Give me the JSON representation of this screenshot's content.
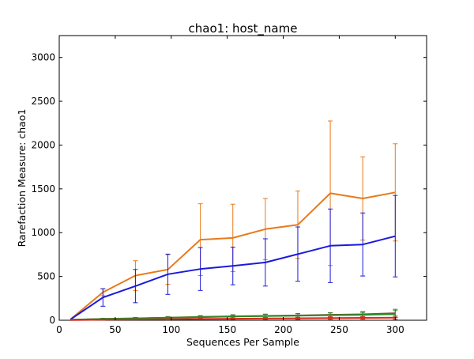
{
  "chart_data": {
    "type": "line",
    "title": "chao1: host_name",
    "xlabel": "Sequences Per Sample",
    "ylabel": "Rarefaction Measure: chao1",
    "xlim": [
      0,
      328
    ],
    "ylim": [
      0,
      3250
    ],
    "x_ticks": [
      0,
      50,
      100,
      150,
      200,
      250,
      300
    ],
    "y_ticks": [
      0,
      500,
      1000,
      1500,
      2000,
      2500,
      3000
    ],
    "grid": false,
    "legend": "none",
    "x": [
      10,
      39,
      68,
      97,
      126,
      155,
      184,
      213,
      242,
      271,
      300
    ],
    "series": [
      {
        "color": "#e87a1a",
        "values": [
          10,
          320,
          510,
          580,
          920,
          940,
          1040,
          1090,
          1450,
          1390,
          1460
        ],
        "errors": [
          0,
          40,
          170,
          170,
          410,
          385,
          350,
          385,
          825,
          475,
          555
        ]
      },
      {
        "color": "#1a1adc",
        "values": [
          10,
          260,
          390,
          525,
          585,
          620,
          660,
          755,
          850,
          865,
          960
        ],
        "errors": [
          0,
          100,
          190,
          230,
          245,
          215,
          270,
          310,
          420,
          360,
          465
        ]
      },
      {
        "color": "#7a4f2a",
        "values": [
          5,
          15,
          22,
          30,
          38,
          45,
          50,
          55,
          62,
          68,
          80
        ],
        "errors": [
          0,
          8,
          10,
          12,
          15,
          18,
          20,
          22,
          25,
          30,
          45
        ]
      },
      {
        "color": "#2c8a2c",
        "values": [
          5,
          14,
          20,
          28,
          35,
          42,
          48,
          52,
          58,
          62,
          70
        ],
        "errors": [
          0,
          8,
          10,
          12,
          15,
          18,
          20,
          22,
          25,
          28,
          40
        ]
      },
      {
        "color": "#d42a1a",
        "values": [
          3,
          6,
          9,
          11,
          14,
          17,
          20,
          22,
          25,
          27,
          30
        ],
        "errors": [
          0,
          4,
          5,
          6,
          7,
          8,
          10,
          12,
          14,
          15,
          18
        ]
      }
    ]
  }
}
